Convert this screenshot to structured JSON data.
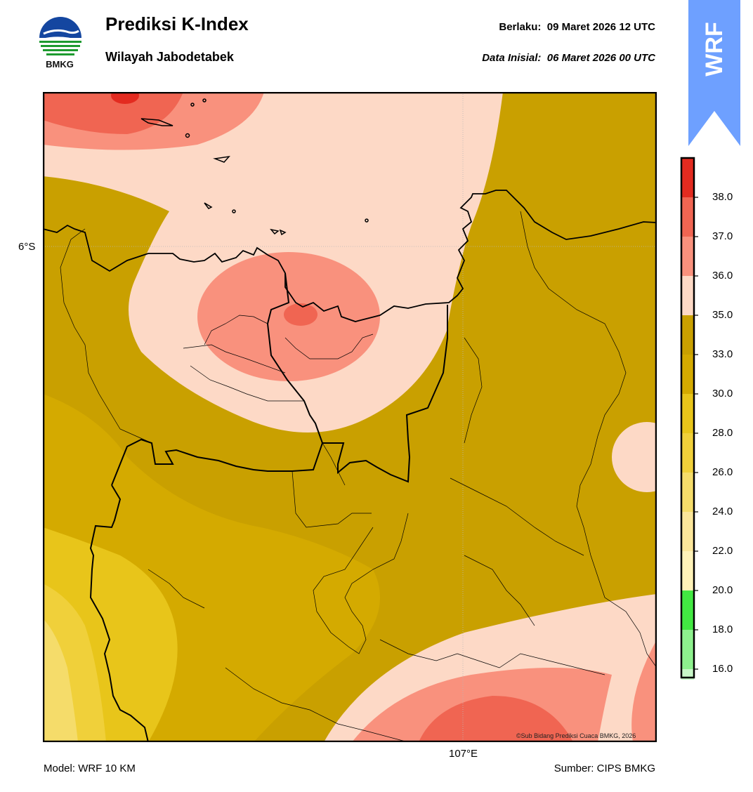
{
  "header": {
    "title": "Prediksi K-Index",
    "subtitle": "Wilayah Jabodetabek",
    "valid_label": "Berlaku:",
    "valid_value": "09 Maret 2026 12 UTC",
    "init_label": "Data Inisial:",
    "init_value": "06 Maret 2026 00 UTC"
  },
  "logo": {
    "text": "BMKG",
    "icon": "bmkg-logo"
  },
  "badge": {
    "text": "WRF",
    "color": "#6ea0ff"
  },
  "map": {
    "lat_label": "6°S",
    "lon_label": "107°E",
    "credit": "©Sub Bidang Prediksi Cuaca BMKG, 2026"
  },
  "footer": {
    "model": "Model: WRF 10 KM",
    "source": "Sumber: CIPS BMKG"
  },
  "colorbar": {
    "ticks": [
      "38.0",
      "37.0",
      "36.0",
      "35.0",
      "33.0",
      "30.0",
      "28.0",
      "26.0",
      "24.0",
      "22.0",
      "20.0",
      "18.0",
      "16.0"
    ],
    "colors": [
      "#e32b20",
      "#f06552",
      "#f9917d",
      "#fdd9c6",
      "#c9a000",
      "#d4aa00",
      "#e8c51a",
      "#f0d03a",
      "#f5dc6a",
      "#fbe69a",
      "#fff2b8",
      "#42e842",
      "#8df08d",
      "#c9f8c9",
      "#ffffff"
    ]
  }
}
